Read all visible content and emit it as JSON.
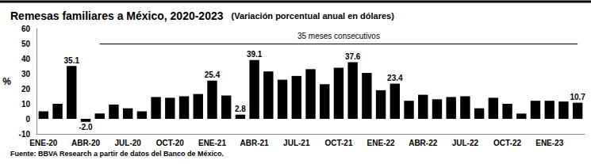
{
  "chart_data": {
    "type": "bar",
    "title": "Remesas familiares a México, 2020-2023",
    "subtitle": "(Variación porcentual anual en dólares)",
    "y_label": "%",
    "annotation": "35 meses consecutivos",
    "source": "Fuente: BBVA Research a partir de datos del Banco de México.",
    "categories": [
      "ENE-20",
      null,
      null,
      "ABR-20",
      null,
      null,
      "JUL-20",
      null,
      null,
      "OCT-20",
      null,
      null,
      "ENE-21",
      null,
      null,
      "ABR-21",
      null,
      null,
      "JUL-21",
      null,
      null,
      "OCT-21",
      null,
      null,
      "ENE-22",
      null,
      null,
      "ABR-22",
      null,
      null,
      "JUL-22",
      null,
      null,
      "OCT-22",
      null,
      null,
      "ENE-23",
      null,
      null
    ],
    "values": [
      5,
      10,
      35.1,
      -2.0,
      3.5,
      9.5,
      7,
      5,
      14.5,
      14,
      15,
      16.5,
      25.4,
      15.5,
      2.8,
      39.1,
      31.5,
      26,
      28.5,
      33,
      23,
      34,
      37.6,
      30.5,
      19,
      23.4,
      12,
      16,
      13,
      14.5,
      15,
      7,
      14,
      10,
      3.5,
      12,
      12,
      11.5,
      10.7
    ],
    "value_labels": [
      null,
      null,
      "35.1",
      "-2.0",
      null,
      null,
      null,
      null,
      null,
      null,
      null,
      null,
      "25.4",
      null,
      "2.8",
      "39.1",
      null,
      null,
      null,
      null,
      null,
      null,
      "37.6",
      null,
      null,
      "23.4",
      null,
      null,
      null,
      null,
      null,
      null,
      null,
      null,
      null,
      null,
      null,
      null,
      "10.7"
    ],
    "data_labels": true,
    "color": "#000000",
    "ylim": [
      -10,
      60
    ],
    "yticks": [
      -10,
      0,
      10,
      20,
      30,
      40,
      50,
      60
    ],
    "grid": false
  }
}
